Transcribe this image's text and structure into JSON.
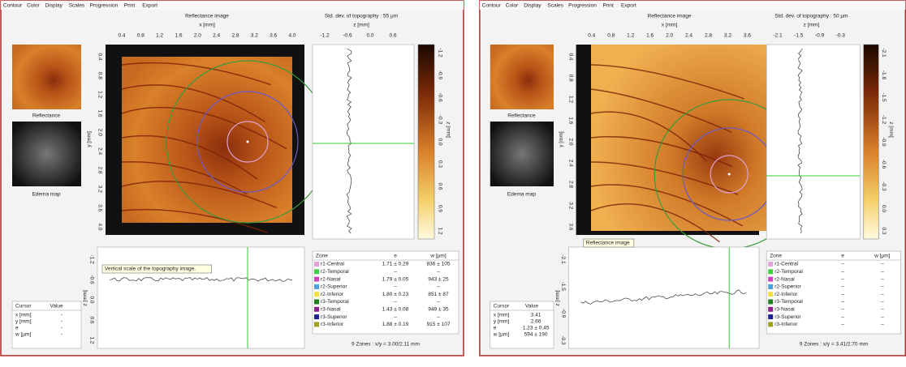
{
  "panels": [
    {
      "menu": [
        "Contour",
        "Color",
        "Display",
        "Scales",
        "Progression",
        "Print",
        "Export"
      ],
      "image_title": "Reflectance image",
      "x_label": "x [mm]",
      "x_ticks": [
        "0.4",
        "0.8",
        "1.2",
        "1.6",
        "2.0",
        "2.4",
        "2.8",
        "3.2",
        "3.6",
        "4.0"
      ],
      "y_label": "y [mm]",
      "y_ticks": [
        "0.4",
        "0.8",
        "1.2",
        "1.6",
        "2.0",
        "2.4",
        "2.8",
        "3.2",
        "3.6",
        "4.0"
      ],
      "std_title": "Std. dev. of topography : 55 µm",
      "z_label": "z [mm]",
      "z_ticks": [
        "-1.2",
        "-0.6",
        "0.0",
        "0.6"
      ],
      "thumbnails": [
        "Reflectance",
        "Edema map"
      ],
      "colorbar_label": "z [mm]",
      "colorbar_ticks": [
        "-1.2",
        "-0.9",
        "-0.6",
        "-0.3",
        "0.0",
        "0.3",
        "0.6",
        "0.9",
        "1.2"
      ],
      "tooltip": "Vertical scale of the topography image.",
      "profile_label": "z [mm]",
      "profile_ticks": [
        "-1.2",
        "-0.6",
        "0.0",
        "0.6",
        "1.2"
      ],
      "cursor_table": {
        "header": [
          "Cursor",
          "Value"
        ],
        "rows": [
          [
            "x [mm]",
            "-"
          ],
          [
            "y [mm]",
            "-"
          ],
          [
            "e",
            "-"
          ],
          [
            "w [µm]",
            "-"
          ]
        ]
      },
      "zone_table": {
        "header": [
          "Zone",
          "e",
          "w [µm]"
        ],
        "rows": [
          [
            "r1-Central",
            "1.71 ± 0.29",
            "836 ± 105"
          ],
          [
            "r2-Temporal",
            "--",
            "--"
          ],
          [
            "r2-Nasal",
            "1.79 ± 0.05",
            "943 ± 25"
          ],
          [
            "r2-Superior",
            "--",
            "--"
          ],
          [
            "r2-Inferior",
            "1.80 ± 0.23",
            "851 ± 87"
          ],
          [
            "r3-Temporal",
            "--",
            "--"
          ],
          [
            "r3-Nasal",
            "1.43 ± 0.08",
            "949 ± 35"
          ],
          [
            "r3-Superior",
            "--",
            "--"
          ],
          [
            "r3-Inferior",
            "1.88 ± 0.19",
            "915 ± 107"
          ]
        ]
      },
      "footer": "9 Zones : x/y = 3.00/2.11 mm"
    },
    {
      "menu": [
        "Contour",
        "Color",
        "Display",
        "Scales",
        "Progression",
        "Print",
        "Export"
      ],
      "image_title": "Reflectance image",
      "x_label": "x [mm]",
      "x_ticks": [
        "0.4",
        "0.8",
        "1.2",
        "1.6",
        "2.0",
        "2.4",
        "2.8",
        "3.2",
        "3.6"
      ],
      "y_label": "y [mm]",
      "y_ticks": [
        "0.4",
        "0.8",
        "1.2",
        "1.6",
        "2.0",
        "2.4",
        "2.8",
        "3.2",
        "3.6"
      ],
      "std_title": "Std. dev. of topography : 50 µm",
      "z_label": "z [mm]",
      "z_ticks": [
        "-2.1",
        "-1.5",
        "-0.9",
        "-0.3"
      ],
      "thumbnails": [
        "Reflectance",
        "Edema map"
      ],
      "colorbar_label": "z [mm]",
      "colorbar_ticks": [
        "-2.1",
        "-1.8",
        "-1.5",
        "-1.2",
        "-0.9",
        "-0.6",
        "-0.3",
        "0.0",
        "0.3"
      ],
      "tooltip": "Reflectance image",
      "profile_label": "z [mm]",
      "profile_ticks": [
        "-2.1",
        "-1.5",
        "-0.9",
        "-0.3"
      ],
      "cursor_table": {
        "header": [
          "Cursor",
          "Value"
        ],
        "rows": [
          [
            "x [mm]",
            "3.41"
          ],
          [
            "y [mm]",
            "2.66"
          ],
          [
            "e",
            "1.23 ± 0.45"
          ],
          [
            "w [µm]",
            "594 ± 190"
          ]
        ]
      },
      "zone_table": {
        "header": [
          "Zone",
          "e",
          "w [µm]"
        ],
        "rows": [
          [
            "r1-Central",
            "--",
            "--"
          ],
          [
            "r2-Temporal",
            "--",
            "--"
          ],
          [
            "r2-Nasal",
            "--",
            "--"
          ],
          [
            "r2-Superior",
            "--",
            "--"
          ],
          [
            "r2-Inferior",
            "--",
            "--"
          ],
          [
            "r3-Temporal",
            "--",
            "--"
          ],
          [
            "r3-Nasal",
            "--",
            "--"
          ],
          [
            "r3-Superior",
            "--",
            "--"
          ],
          [
            "r3-Inferior",
            "--",
            "--"
          ]
        ]
      },
      "footer": "9 Zones : x/y = 3.41/2.70 mm"
    }
  ]
}
